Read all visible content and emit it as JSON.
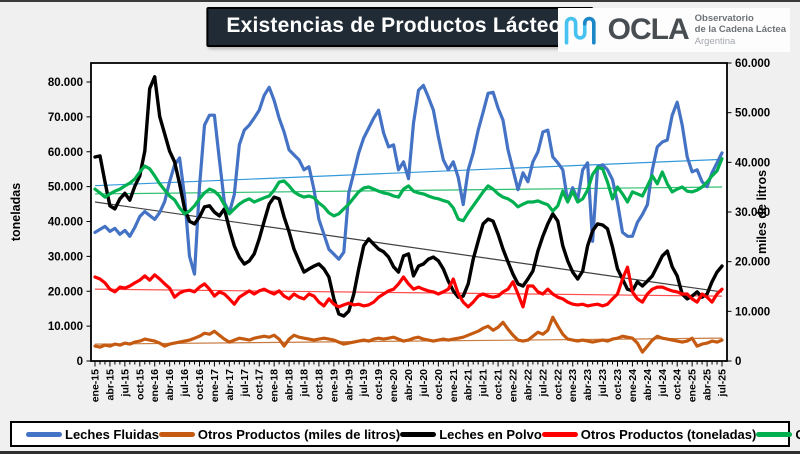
{
  "header": {
    "title": "Existencias de Productos Lácteos",
    "logo": {
      "brand": "OCLA",
      "line1": "Observatorio",
      "line2": "de la Cadena Láctea",
      "line3": "Argentina",
      "wave_color_light": "#45c2f0",
      "wave_color_dark": "#1d86c8"
    }
  },
  "legend": {
    "items": [
      {
        "label": "Leches Fluidas",
        "color": "#4472C4"
      },
      {
        "label": "Otros Productos (miles de litros)",
        "color": "#C55A11"
      },
      {
        "label": "Leches en Polvo",
        "color": "#000000"
      },
      {
        "label": "Otros Productos (toneladas)",
        "color": "#FF0000"
      },
      {
        "label": "Quesos",
        "color": "#00B050"
      }
    ]
  },
  "chart_data": {
    "type": "line",
    "title": "Existencias de Productos Lácteos",
    "x_frequency": "monthly",
    "x_start": "ene-15",
    "x_end": "jul-25",
    "points_per_series": 127,
    "grid": false,
    "legend_position": "bottom",
    "x_tick_labels": [
      "ene-15",
      "abr-15",
      "jul-15",
      "oct-15",
      "ene-16",
      "abr-16",
      "jul-16",
      "oct-16",
      "ene-17",
      "abr-17",
      "jul-17",
      "oct-17",
      "ene-18",
      "abr-18",
      "jul-18",
      "oct-18",
      "ene-19",
      "abr-19",
      "jul-19",
      "oct-19",
      "ene-20",
      "abr-20",
      "jul-20",
      "oct-20",
      "ene-21",
      "abr-21",
      "jul-21",
      "oct-21",
      "ene-22",
      "abr-22",
      "jul-22",
      "oct-22",
      "ene-23",
      "abr-23",
      "jul-23",
      "oct-23",
      "ene-24",
      "abr-24",
      "jul-24",
      "oct-24",
      "ene-25",
      "abr-25",
      "jul-25"
    ],
    "left_axis": {
      "title": "toneladas",
      "min": 0,
      "max": 80000,
      "tick_step": 10000,
      "tick_labels": [
        "0",
        "10.000",
        "20.000",
        "30.000",
        "40.000",
        "50.000",
        "60.000",
        "70.000",
        "80.000"
      ]
    },
    "right_axis": {
      "title": "miles de litros",
      "min": 0,
      "max": 60000,
      "tick_step": 10000,
      "tick_labels": [
        "0",
        "10.000",
        "20.000",
        "30.000",
        "40.000",
        "50.000",
        "60.000"
      ]
    },
    "series": [
      {
        "name": "Leches Fluidas",
        "color": "#4472C4",
        "axis": "right",
        "width": 3.2,
        "values": [
          25900,
          26500,
          27100,
          26100,
          26700,
          25500,
          26300,
          25100,
          26900,
          29100,
          30100,
          29300,
          28500,
          29900,
          32100,
          36100,
          39500,
          40900,
          33100,
          21100,
          17500,
          35100,
          47500,
          49500,
          49500,
          40500,
          31900,
          29900,
          33500,
          43500,
          46500,
          47500,
          48900,
          50500,
          53500,
          55100,
          52500,
          48900,
          46100,
          42500,
          41500,
          40500,
          38500,
          39100,
          34500,
          28500,
          25500,
          22500,
          21500,
          20500,
          21900,
          33900,
          37900,
          41900,
          44900,
          46900,
          48900,
          50500,
          45900,
          43100,
          43500,
          38500,
          40100,
          36700,
          47900,
          54500,
          55500,
          53100,
          50500,
          45100,
          40500,
          38500,
          40100,
          36900,
          31500,
          38500,
          41900,
          46500,
          50100,
          53900,
          54100,
          50900,
          48500,
          42500,
          38500,
          34500,
          37900,
          36100,
          40100,
          42100,
          46100,
          46500,
          41100,
          39900,
          38500,
          32100,
          34900,
          32500,
          38500,
          39900,
          24100,
          39100,
          39500,
          38500,
          36500,
          31900,
          25900,
          25100,
          25100,
          27900,
          29500,
          31500,
          38500,
          43100,
          44100,
          44500,
          49500,
          52100,
          47500,
          41100,
          38100,
          38500,
          36100,
          35100,
          37900,
          39900,
          41900
        ]
      },
      {
        "name": "Otros Productos (miles de litros)",
        "color": "#C55A11",
        "axis": "right",
        "width": 3.2,
        "values": [
          3000,
          2800,
          3200,
          3000,
          3400,
          3200,
          3600,
          3400,
          3800,
          4000,
          4400,
          4200,
          4000,
          3600,
          3000,
          3400,
          3600,
          3800,
          4000,
          4200,
          4600,
          5000,
          5600,
          5400,
          6000,
          5200,
          4400,
          3800,
          4200,
          4600,
          4400,
          4200,
          4600,
          4800,
          5000,
          4800,
          5200,
          4400,
          3000,
          4400,
          5200,
          4800,
          4600,
          4400,
          4200,
          4400,
          4600,
          4400,
          4200,
          3800,
          3400,
          3600,
          3800,
          4000,
          4200,
          4000,
          4400,
          4600,
          4400,
          4600,
          4800,
          4400,
          4000,
          4200,
          4600,
          4800,
          4400,
          4200,
          4000,
          4200,
          4400,
          4200,
          4400,
          4600,
          4800,
          5200,
          5600,
          6000,
          6600,
          7000,
          6200,
          6800,
          7800,
          6400,
          5200,
          4200,
          4000,
          4200,
          5000,
          5800,
          5400,
          6200,
          8800,
          7000,
          5400,
          4400,
          4200,
          4000,
          4200,
          4000,
          3800,
          4000,
          4200,
          4000,
          4400,
          4600,
          5000,
          4800,
          4600,
          3600,
          1800,
          3000,
          4200,
          5000,
          4600,
          4400,
          4200,
          4000,
          3800,
          4000,
          4600,
          3000,
          3400,
          3600,
          4000,
          3800,
          4200
        ]
      },
      {
        "name": "Leches en Polvo",
        "color": "#000000",
        "axis": "left",
        "width": 3.4,
        "values": [
          58500,
          58800,
          51300,
          44500,
          43600,
          46500,
          48100,
          46100,
          50100,
          53100,
          60200,
          78100,
          81500,
          70100,
          65100,
          60200,
          57100,
          50800,
          43600,
          40100,
          39300,
          41300,
          44200,
          44500,
          42700,
          41600,
          43600,
          37900,
          33000,
          29800,
          27800,
          28700,
          30700,
          35000,
          40100,
          45000,
          47000,
          46500,
          41300,
          37000,
          32100,
          28700,
          25500,
          26400,
          27200,
          27800,
          26400,
          24100,
          17800,
          13500,
          12900,
          14300,
          19200,
          26400,
          33000,
          35000,
          33500,
          32100,
          31300,
          29800,
          27000,
          25500,
          30100,
          30700,
          24400,
          27200,
          27800,
          29200,
          29800,
          28700,
          26400,
          22900,
          20100,
          18300,
          18600,
          22100,
          29200,
          34400,
          39300,
          40700,
          40100,
          36400,
          32100,
          28400,
          24900,
          22100,
          21500,
          23500,
          25800,
          31500,
          35800,
          39300,
          42200,
          40100,
          33000,
          28700,
          25500,
          23500,
          25800,
          33000,
          37300,
          39300,
          39000,
          37900,
          32700,
          26400,
          23500,
          20600,
          20100,
          22700,
          21500,
          22900,
          24400,
          27200,
          30100,
          31500,
          27000,
          24400,
          19200,
          17800,
          18600,
          19800,
          18300,
          19200,
          22700,
          25500,
          27200
        ]
      },
      {
        "name": "Otros Productos (toneladas)",
        "color": "#FF0000",
        "axis": "left",
        "width": 3.2,
        "values": [
          24100,
          23500,
          22400,
          20600,
          19800,
          21200,
          20900,
          21500,
          22400,
          23200,
          24400,
          23200,
          24700,
          23500,
          22100,
          20900,
          18300,
          19500,
          20100,
          20300,
          19800,
          21200,
          22100,
          20600,
          18600,
          19800,
          19200,
          17800,
          16300,
          18300,
          19200,
          20100,
          19200,
          20100,
          20600,
          19800,
          19200,
          20100,
          18600,
          17800,
          19200,
          18300,
          17800,
          19200,
          18600,
          16900,
          15800,
          17800,
          16300,
          15500,
          16100,
          16600,
          16100,
          16300,
          15800,
          16100,
          16900,
          18300,
          19200,
          20100,
          20600,
          22100,
          24100,
          22100,
          20600,
          21200,
          20600,
          20100,
          19800,
          19200,
          19800,
          20600,
          23500,
          19200,
          16900,
          15500,
          16900,
          18600,
          19200,
          18600,
          18300,
          18600,
          19800,
          20600,
          22700,
          19200,
          15500,
          21500,
          21500,
          19800,
          19200,
          20600,
          19200,
          18300,
          17800,
          16900,
          16300,
          16100,
          16300,
          15800,
          16100,
          16300,
          15800,
          16300,
          17800,
          19200,
          23500,
          26900,
          19800,
          17800,
          16900,
          19200,
          20600,
          21200,
          21200,
          20600,
          20100,
          19800,
          19200,
          19200,
          17800,
          16900,
          19200,
          18300,
          16900,
          19200,
          20600
        ]
      },
      {
        "name": "Quesos",
        "color": "#00B050",
        "axis": "left",
        "width": 3.2,
        "values": [
          49300,
          48200,
          47000,
          47900,
          48700,
          49300,
          50200,
          51000,
          52200,
          54200,
          55900,
          55100,
          53100,
          50800,
          49000,
          47300,
          46200,
          43900,
          42200,
          43000,
          44500,
          46500,
          48200,
          49300,
          48700,
          47300,
          44800,
          42200,
          43600,
          45000,
          45900,
          46500,
          45600,
          46200,
          46800,
          47300,
          49000,
          51300,
          51600,
          50200,
          48500,
          47600,
          47000,
          47300,
          46800,
          45300,
          44200,
          42500,
          41600,
          42200,
          43600,
          45000,
          46800,
          48500,
          49600,
          49900,
          49300,
          48700,
          48200,
          47900,
          47300,
          47000,
          49300,
          50200,
          48700,
          48200,
          47900,
          47300,
          46800,
          46500,
          46000,
          45600,
          43900,
          40700,
          40200,
          42500,
          44500,
          46500,
          48500,
          50200,
          49300,
          47900,
          47000,
          46500,
          45600,
          44200,
          45000,
          45600,
          45600,
          45900,
          45300,
          44800,
          43000,
          44500,
          48700,
          45600,
          48700,
          45600,
          46500,
          49000,
          53500,
          55500,
          55100,
          51300,
          46500,
          49900,
          47900,
          45600,
          48500,
          47900,
          47300,
          50200,
          53100,
          50800,
          54200,
          50800,
          48500,
          49300,
          49900,
          48700,
          48500,
          49000,
          49900,
          51300,
          53100,
          54500,
          58000
        ]
      }
    ],
    "trendlines": [
      {
        "series": "Leches Fluidas",
        "axis": "right",
        "start": 35300,
        "end": 40600,
        "color": "#3399DB"
      },
      {
        "series": "Otros Productos (miles de litros)",
        "axis": "right",
        "start": 3400,
        "end": 4600,
        "color": "#C97B42"
      },
      {
        "series": "Leches en Polvo",
        "axis": "left",
        "start": 45600,
        "end": 19800,
        "color": "#404040"
      },
      {
        "series": "Otros Productos (toneladas)",
        "axis": "left",
        "start": 20600,
        "end": 18600,
        "color": "#FF4D4D"
      },
      {
        "series": "Quesos",
        "axis": "left",
        "start": 47900,
        "end": 49900,
        "color": "#2FBF71"
      }
    ]
  }
}
